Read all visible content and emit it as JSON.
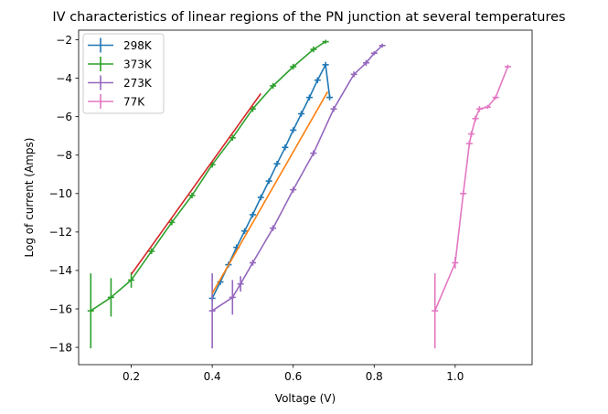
{
  "chart_data": {
    "type": "line",
    "title": "IV characteristics of linear regions of the PN junction at several temperatures",
    "xlabel": "Voltage (V)",
    "ylabel": "Log of current (Amps)",
    "xlim": [
      0.07,
      1.19
    ],
    "ylim": [
      -18.9,
      -1.5
    ],
    "xticks": [
      "0.2",
      "0.4",
      "0.6",
      "0.8",
      "1.0"
    ],
    "yticks": [
      "−2",
      "−4",
      "−6",
      "−8",
      "−10",
      "−12",
      "−14",
      "−16",
      "−18"
    ],
    "grid": false,
    "legend_position": "top-left",
    "series": [
      {
        "name": "298K",
        "color": "#1f77b4",
        "x": [
          0.4,
          0.42,
          0.44,
          0.46,
          0.48,
          0.5,
          0.52,
          0.54,
          0.56,
          0.58,
          0.6,
          0.62,
          0.64,
          0.66,
          0.68,
          0.69
        ],
        "y": [
          -15.45,
          -14.6,
          -13.7,
          -12.8,
          -11.95,
          -11.1,
          -10.2,
          -9.35,
          -8.45,
          -7.6,
          -6.7,
          -5.85,
          -5.0,
          -4.1,
          -3.3,
          -5.0
        ],
        "yerr": [
          0.15,
          0.15,
          0.15,
          0.15,
          0.15,
          0.15,
          0.15,
          0.15,
          0.15,
          0.15,
          0.15,
          0.15,
          0.15,
          0.15,
          0.15,
          0.15
        ]
      },
      {
        "name": "373K",
        "color": "#2ca02c",
        "x": [
          0.1,
          0.15,
          0.2,
          0.25,
          0.3,
          0.35,
          0.4,
          0.45,
          0.5,
          0.55,
          0.6,
          0.65,
          0.68
        ],
        "y": [
          -16.1,
          -15.4,
          -14.5,
          -13.0,
          -11.5,
          -10.1,
          -8.5,
          -7.1,
          -5.6,
          -4.4,
          -3.4,
          -2.5,
          -2.1
        ],
        "yerr": [
          1.95,
          1.0,
          0.4,
          0.15,
          0.15,
          0.15,
          0.15,
          0.15,
          0.15,
          0.15,
          0.15,
          0.15,
          0.1
        ]
      },
      {
        "name": "273K",
        "color": "#9467bd",
        "x": [
          0.4,
          0.45,
          0.47,
          0.5,
          0.55,
          0.6,
          0.65,
          0.7,
          0.75,
          0.78,
          0.8,
          0.82
        ],
        "y": [
          -16.1,
          -15.4,
          -14.7,
          -13.6,
          -11.8,
          -9.8,
          -7.9,
          -5.6,
          -3.8,
          -3.2,
          -2.7,
          -2.3
        ],
        "yerr": [
          1.95,
          0.9,
          0.4,
          0.15,
          0.15,
          0.15,
          0.15,
          0.15,
          0.15,
          0.15,
          0.1,
          0.1
        ]
      },
      {
        "name": "77K",
        "color": "#e377c2",
        "x": [
          0.95,
          1.0,
          1.02,
          1.035,
          1.04,
          1.05,
          1.06,
          1.08,
          1.1,
          1.13
        ],
        "y": [
          -16.1,
          -13.6,
          -10.0,
          -7.4,
          -6.9,
          -6.1,
          -5.6,
          -5.5,
          -5.0,
          -3.4
        ],
        "yerr": [
          1.95,
          0.3,
          0.15,
          0.15,
          0.15,
          0.15,
          0.15,
          0.1,
          0.1,
          0.1
        ]
      },
      {
        "name": "",
        "color": "#ff7f0e",
        "x": [
          0.4,
          0.685
        ],
        "y": [
          -15.2,
          -4.7
        ]
      },
      {
        "name": "",
        "color": "#d62728",
        "x": [
          0.2,
          0.52
        ],
        "y": [
          -14.2,
          -4.8
        ]
      }
    ]
  }
}
